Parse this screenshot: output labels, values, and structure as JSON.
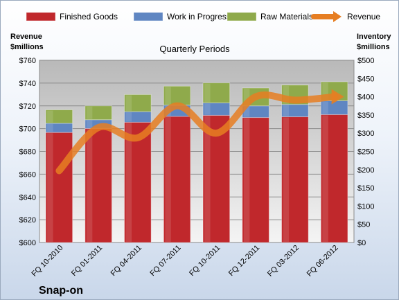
{
  "chart_data": {
    "type": "bar",
    "company": "Snap-on",
    "title": "Quarterly Periods",
    "left_axis_label": [
      "Revenue",
      "$millions"
    ],
    "right_axis_label": [
      "Inventory",
      "$millions"
    ],
    "categories": [
      "FQ 10-2010",
      "FQ 01-2011",
      "FQ 04-2011",
      "FQ 07-2011",
      "FQ 10-2011",
      "FQ 12-2011",
      "FQ 03-2012",
      "FQ 06-2012"
    ],
    "left_ylim": [
      600,
      760
    ],
    "left_ticks": [
      600,
      620,
      640,
      660,
      680,
      700,
      720,
      740,
      760
    ],
    "left_tick_labels": [
      "$600",
      "$620",
      "$640",
      "$660",
      "$680",
      "$700",
      "$720",
      "$740",
      "$760"
    ],
    "right_ylim": [
      0,
      500
    ],
    "right_ticks": [
      0,
      50,
      100,
      150,
      200,
      250,
      300,
      350,
      400,
      450,
      500
    ],
    "right_tick_labels": [
      "$0",
      "$50",
      "$100",
      "$150",
      "$200",
      "$250",
      "$300",
      "$350",
      "$400",
      "$450",
      "$500"
    ],
    "stacked": true,
    "series": [
      {
        "name": "Finished Goods",
        "color": "#c0282c",
        "axis": "right",
        "values": [
          302,
          313,
          330,
          346,
          349,
          343,
          345,
          351
        ]
      },
      {
        "name": "Work in Progress",
        "color": "#5f86c2",
        "axis": "right",
        "values": [
          25,
          24,
          29,
          31,
          34,
          32,
          34,
          38
        ]
      },
      {
        "name": "Raw Materials",
        "color": "#8faa4b",
        "axis": "right",
        "values": [
          37,
          38,
          47,
          52,
          55,
          49,
          53,
          52
        ]
      }
    ],
    "line_series": {
      "name": "Revenue",
      "color": "#e67e22",
      "axis": "left",
      "values": [
        663,
        701,
        692,
        720,
        696,
        728,
        725,
        728
      ]
    },
    "legend_position": "top",
    "grid": true
  }
}
